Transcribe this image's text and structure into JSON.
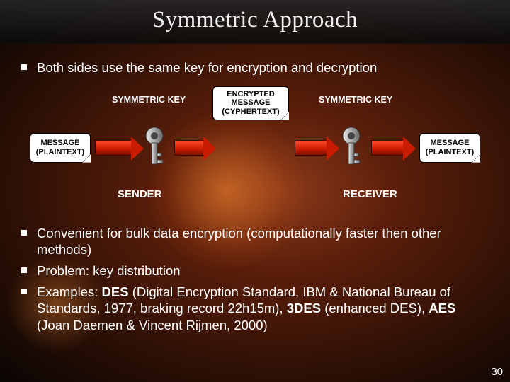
{
  "slide": {
    "title": "Symmetric Approach",
    "page_number": "30",
    "colors": {
      "title_bar_bg": "#1a1a1a",
      "text": "#ffffff",
      "box_bg": "#ffffff",
      "box_text": "#000000",
      "arrow_fill": "#d02400",
      "background_center": "#8b3a1a",
      "background_edge": "#0a0503"
    },
    "bullets_top": [
      "Both sides use the same key for encryption and decryption"
    ],
    "diagram": {
      "key_label_left": "SYMMETRIC KEY",
      "key_label_right": "SYMMETRIC KEY",
      "box_left": "MESSAGE\n(PLAINTEXT)",
      "box_center": "ENCRYPTED\nMESSAGE\n(CYPHERTEXT)",
      "box_right": "MESSAGE\n(PLAINTEXT)",
      "sender": "SENDER",
      "receiver": "RECEIVER"
    },
    "bullets_bottom": [
      "Convenient for bulk data encryption (computationally faster then other methods)",
      "Problem: key distribution",
      "Examples: DES (Digital Encryption Standard, IBM & National Bureau of Standards, 1977, braking record 22h15m), 3DES (enhanced DES), AES (Joan Daemen & Vincent Rijmen, 2000)"
    ]
  }
}
